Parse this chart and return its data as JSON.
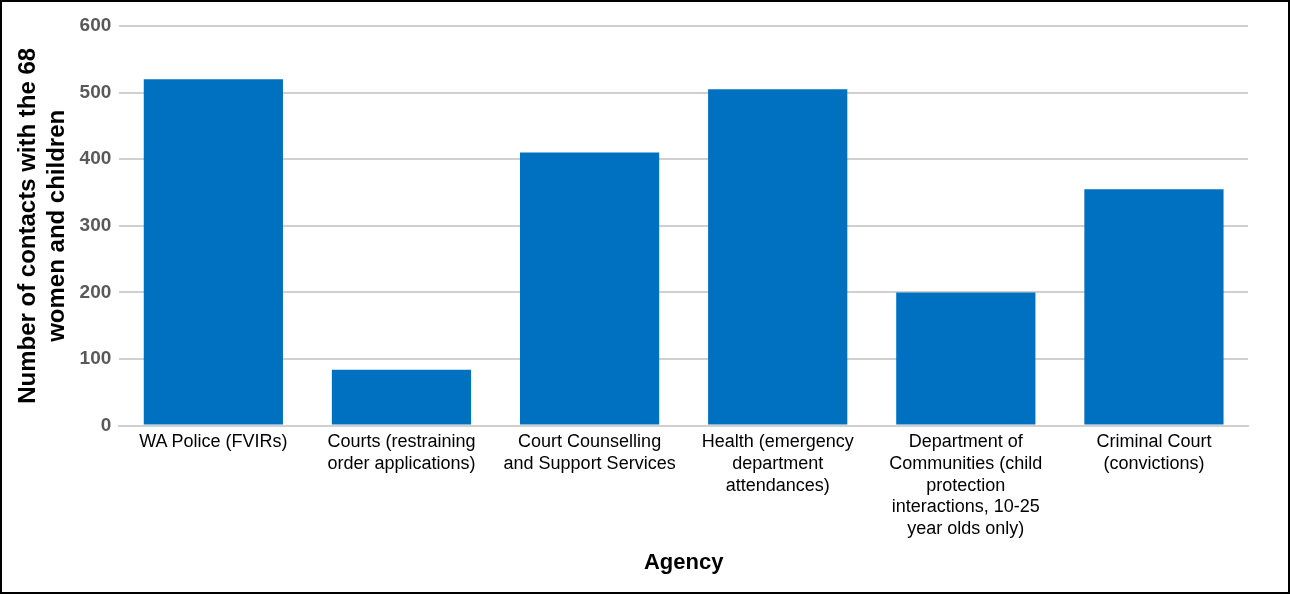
{
  "chart_data": {
    "type": "bar",
    "xlabel": "Agency",
    "ylabel": "Number of contacts with the 68 women and children",
    "categories": [
      "WA Police (FVIRs)",
      "Courts (restraining order applications)",
      "Court Counselling and Support Services",
      "Health (emergency department attendances)",
      "Department of Communities (child protection interactions, 10-25 year olds only)",
      "Criminal Court (convictions)"
    ],
    "values": [
      520,
      84,
      410,
      505,
      200,
      355
    ],
    "color": "#0070c0",
    "ylim": [
      0,
      600
    ],
    "yticks": [
      0,
      100,
      200,
      300,
      400,
      500,
      600
    ],
    "grid": "y",
    "legend": false
  }
}
